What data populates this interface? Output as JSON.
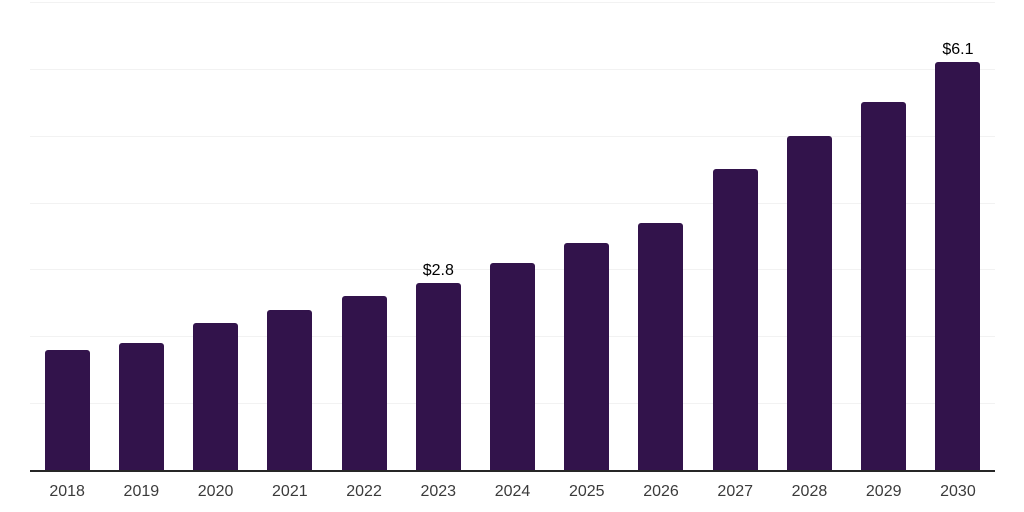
{
  "chart_data": {
    "type": "bar",
    "title": "",
    "xlabel": "",
    "ylabel": "",
    "categories": [
      "2018",
      "2019",
      "2020",
      "2021",
      "2022",
      "2023",
      "2024",
      "2025",
      "2026",
      "2027",
      "2028",
      "2029",
      "2030"
    ],
    "values": [
      1.8,
      1.9,
      2.2,
      2.4,
      2.6,
      2.8,
      3.1,
      3.4,
      3.7,
      4.5,
      5.0,
      5.5,
      6.1
    ],
    "bar_labels": [
      "",
      "",
      "",
      "",
      "",
      "$2.8",
      "",
      "",
      "",
      "",
      "",
      "",
      "$6.1"
    ],
    "ylim": [
      0,
      7
    ],
    "grid": {
      "horizontal": true,
      "interval": 1.0,
      "y_tick_labels_visible": false
    },
    "legend": "none"
  },
  "colors": {
    "bar": "#32134b",
    "gridline": "#f2f2f2",
    "axis_line": "#262626",
    "x_label": "#3b3b3b",
    "data_label": "#000000",
    "background": "#ffffff"
  }
}
